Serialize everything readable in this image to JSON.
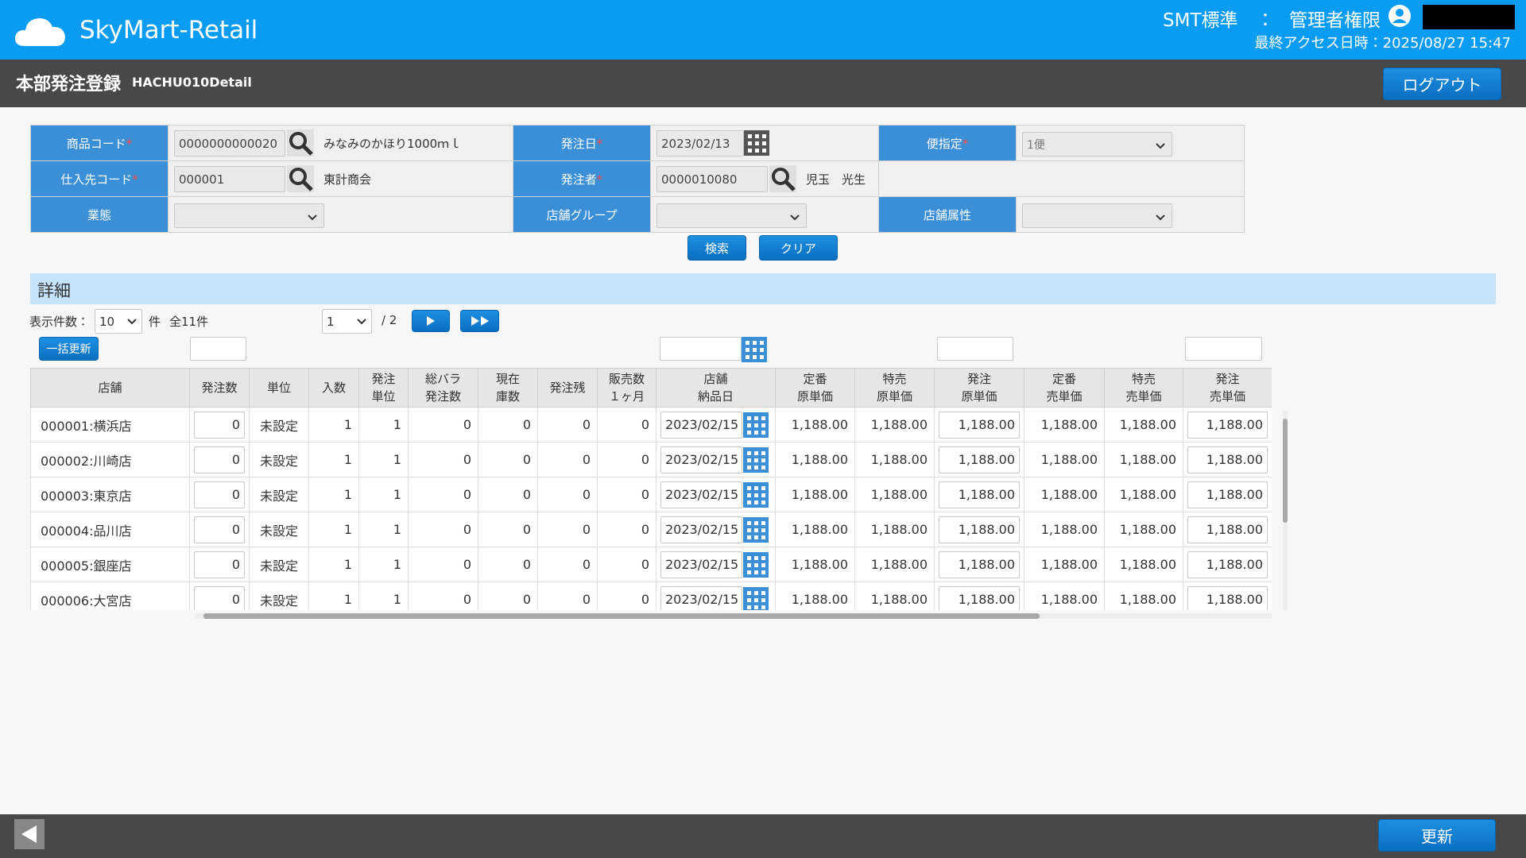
{
  "header": {
    "logo": "SkyMart-Retail",
    "org": "SMT標準　：",
    "role": "管理者権限",
    "last_access": "最終アクセス日時：2025/08/27 15:47"
  },
  "title_bar": {
    "title": "本部発注登録",
    "screen_id": "HACHU010Detail",
    "logout": "ログアウト"
  },
  "search_form": {
    "rows": [
      [
        {
          "label": "商品コード",
          "required_mark": "*",
          "widget": "search",
          "value": "0000000000020",
          "name": "みなみのかほり1000ｍｌ"
        },
        {
          "label": "発注日",
          "required_mark": "*",
          "widget": "date",
          "value": "2023/02/13"
        },
        {
          "label": "便指定",
          "required_mark": "*",
          "widget": "select",
          "value": "1便"
        }
      ],
      [
        {
          "label": "仕入先コード",
          "required_mark": "*",
          "widget": "search",
          "value": "000001",
          "name": "東計商会"
        },
        {
          "label": "発注者",
          "required_mark": "*",
          "widget": "search",
          "value": "0000010080",
          "name": "児玉　光生"
        },
        {
          "widget": "none"
        }
      ],
      [
        {
          "label": "業態",
          "widget": "select"
        },
        {
          "label": "店舗グループ",
          "widget": "select"
        },
        {
          "label": "店舗属性",
          "widget": "select"
        }
      ]
    ],
    "search_button": "検索",
    "clear_button": "クリア"
  },
  "detail": {
    "section_title": "詳細",
    "pager": {
      "count_label": "表示件数：",
      "count": "10",
      "count_unit": "件",
      "total": "全11件",
      "page": "1",
      "page_total": "/ 2"
    },
    "bulk_button": "一括更新",
    "columns": [
      "店舗",
      "発注数",
      "単位",
      "入数",
      "発注\n単位",
      "総バラ\n発注数",
      "現在\n庫数",
      "発注残",
      "販売数\n１ヶ月",
      "店舗\n納品日",
      "定番\n原単価",
      "特売\n原単価",
      "発注\n原単価",
      "定番\n売単価",
      "特売\n売単価",
      "発注\n売単価"
    ],
    "rows": [
      [
        "000001:横浜店",
        "0",
        "未設定",
        "1",
        "1",
        "0",
        "0",
        "0",
        "0",
        "2023/02/15",
        "1,188.00",
        "1,188.00",
        "1,188.00",
        "1,188.00",
        "1,188.00",
        "1,188.00"
      ],
      [
        "000002:川崎店",
        "0",
        "未設定",
        "1",
        "1",
        "0",
        "0",
        "0",
        "0",
        "2023/02/15",
        "1,188.00",
        "1,188.00",
        "1,188.00",
        "1,188.00",
        "1,188.00",
        "1,188.00"
      ],
      [
        "000003:東京店",
        "0",
        "未設定",
        "1",
        "1",
        "0",
        "0",
        "0",
        "0",
        "2023/02/15",
        "1,188.00",
        "1,188.00",
        "1,188.00",
        "1,188.00",
        "1,188.00",
        "1,188.00"
      ],
      [
        "000004:品川店",
        "0",
        "未設定",
        "1",
        "1",
        "0",
        "0",
        "0",
        "0",
        "2023/02/15",
        "1,188.00",
        "1,188.00",
        "1,188.00",
        "1,188.00",
        "1,188.00",
        "1,188.00"
      ],
      [
        "000005:銀座店",
        "0",
        "未設定",
        "1",
        "1",
        "0",
        "0",
        "0",
        "0",
        "2023/02/15",
        "1,188.00",
        "1,188.00",
        "1,188.00",
        "1,188.00",
        "1,188.00",
        "1,188.00"
      ],
      [
        "000006:大宮店",
        "0",
        "未設定",
        "1",
        "1",
        "0",
        "0",
        "0",
        "0",
        "2023/02/15",
        "1,188.00",
        "1,188.00",
        "1,188.00",
        "1,188.00",
        "1,188.00",
        "1,188.00"
      ]
    ]
  },
  "footer": {
    "update_button": "更新"
  }
}
